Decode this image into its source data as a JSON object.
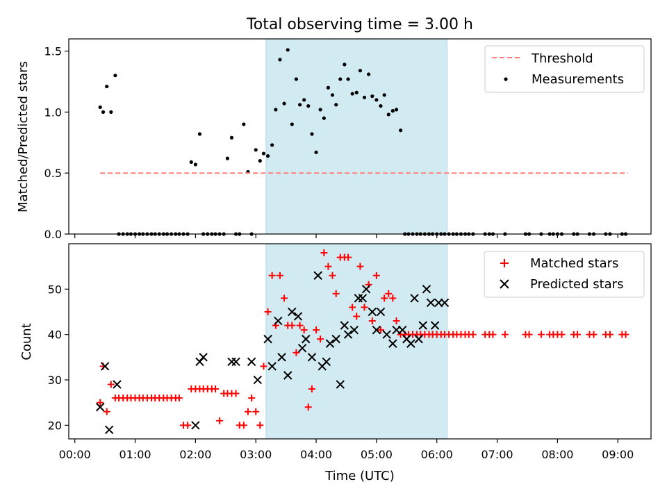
{
  "chart_data": {
    "type": "scatter",
    "title": "Total observing time = 3.00 h",
    "xlabel": "Time (UTC)",
    "x_tick_labels": [
      "00:00",
      "01:00",
      "02:00",
      "03:00",
      "04:00",
      "05:00",
      "06:00",
      "07:00",
      "08:00",
      "09:00"
    ],
    "xlim_hours": [
      -0.1,
      9.55
    ],
    "shaded_interval_hours": [
      3.17,
      6.17
    ],
    "shade_color": "#add8e6",
    "panels": [
      {
        "ylabel": "Matched/Predicted stars",
        "ylim": [
          0,
          1.6
        ],
        "y_ticks": [
          0.0,
          0.5,
          1.0,
          1.5
        ],
        "y_tick_labels": [
          "0.0",
          "0.5",
          "1.0",
          "1.5"
        ],
        "legend": [
          "Threshold",
          "Measurements"
        ],
        "threshold": {
          "name": "Threshold",
          "y": 0.5,
          "x_range": [
            0.42,
            9.17
          ],
          "color": "#ff7f7f"
        },
        "measurements": {
          "name": "Measurements",
          "color": "#000000",
          "x": [
            0.42,
            0.47,
            0.53,
            0.6,
            0.67,
            0.73,
            0.8,
            0.87,
            0.93,
            1.0,
            1.07,
            1.13,
            1.2,
            1.27,
            1.33,
            1.4,
            1.47,
            1.53,
            1.6,
            1.67,
            1.73,
            1.8,
            1.87,
            1.93,
            2.0,
            2.07,
            2.13,
            2.2,
            2.27,
            2.33,
            2.4,
            2.47,
            2.53,
            2.6,
            2.67,
            2.73,
            2.8,
            2.87,
            2.93,
            3.0,
            3.07,
            3.13,
            3.2,
            3.27,
            3.33,
            3.4,
            3.47,
            3.53,
            3.6,
            3.67,
            3.73,
            3.8,
            3.87,
            3.93,
            4.0,
            4.07,
            4.13,
            4.2,
            4.27,
            4.33,
            4.4,
            4.47,
            4.53,
            4.6,
            4.67,
            4.73,
            4.8,
            4.87,
            4.93,
            5.0,
            5.07,
            5.13,
            5.2,
            5.27,
            5.33,
            5.4,
            5.47,
            5.53,
            5.6,
            5.67,
            5.73,
            5.8,
            5.87,
            5.93,
            6.0,
            6.07,
            6.13,
            6.2,
            6.27,
            6.33,
            6.4,
            6.47,
            6.53,
            6.6,
            6.8,
            6.87,
            6.93,
            7.13,
            7.47,
            7.53,
            7.73,
            7.87,
            7.93,
            8.0,
            8.07,
            8.27,
            8.33,
            8.53,
            8.6,
            8.8,
            8.87,
            9.07,
            9.13
          ],
          "y": [
            1.04,
            1.0,
            1.21,
            1.0,
            1.3,
            0.0,
            0.0,
            0.0,
            0.0,
            0.0,
            0.0,
            0.0,
            0.0,
            0.0,
            0.0,
            0.0,
            0.0,
            0.0,
            0.0,
            0.0,
            0.0,
            0.0,
            0.0,
            0.59,
            0.57,
            0.82,
            0.0,
            0.0,
            0.0,
            0.0,
            0.0,
            0.0,
            0.62,
            0.79,
            0.0,
            0.0,
            0.9,
            0.51,
            0.0,
            0.69,
            0.6,
            0.66,
            0.64,
            0.73,
            1.02,
            1.43,
            1.07,
            1.51,
            0.9,
            1.27,
            1.06,
            1.1,
            1.05,
            0.82,
            0.67,
            1.02,
            0.95,
            1.2,
            1.14,
            1.06,
            1.27,
            1.39,
            1.27,
            1.15,
            1.16,
            1.34,
            1.12,
            1.31,
            1.13,
            1.1,
            1.05,
            1.14,
            0.98,
            1.01,
            1.02,
            0.85,
            0.0,
            0.0,
            0.0,
            0.0,
            0.0,
            0.0,
            0.0,
            0.0,
            0.0,
            0.0,
            0.0,
            0.0,
            0.0,
            0.0,
            0.0,
            0.0,
            0.0,
            0.0,
            0.0,
            0.0,
            0.0,
            0.0,
            0.0,
            0.0,
            0.0,
            0.0,
            0.0,
            0.0,
            0.0,
            0.0,
            0.0,
            0.0,
            0.0,
            0.0,
            0.0,
            0.0,
            0.0
          ]
        }
      },
      {
        "ylabel": "Count",
        "ylim": [
          17,
          60
        ],
        "y_ticks": [
          20,
          30,
          40,
          50
        ],
        "y_tick_labels": [
          "20",
          "30",
          "40",
          "50"
        ],
        "legend": [
          "Matched stars",
          "Predicted stars"
        ],
        "series": [
          {
            "name": "Matched stars",
            "marker": "+",
            "color": "#ff0000",
            "x": [
              0.42,
              0.47,
              0.53,
              0.6,
              0.67,
              0.73,
              0.8,
              0.87,
              0.93,
              1.0,
              1.07,
              1.13,
              1.2,
              1.27,
              1.33,
              1.4,
              1.47,
              1.53,
              1.6,
              1.67,
              1.73,
              1.8,
              1.87,
              1.93,
              2.0,
              2.07,
              2.13,
              2.2,
              2.27,
              2.33,
              2.4,
              2.47,
              2.53,
              2.6,
              2.67,
              2.73,
              2.8,
              2.87,
              2.93,
              3.0,
              3.07,
              3.13,
              3.2,
              3.27,
              3.33,
              3.4,
              3.47,
              3.53,
              3.6,
              3.67,
              3.73,
              3.8,
              3.87,
              3.93,
              4.0,
              4.07,
              4.13,
              4.2,
              4.27,
              4.33,
              4.4,
              4.47,
              4.53,
              4.6,
              4.67,
              4.73,
              4.8,
              4.87,
              4.93,
              5.0,
              5.07,
              5.13,
              5.2,
              5.27,
              5.33,
              5.4,
              5.47,
              5.53,
              5.6,
              5.67,
              5.73,
              5.8,
              5.87,
              5.93,
              6.0,
              6.07,
              6.13,
              6.2,
              6.27,
              6.33,
              6.4,
              6.47,
              6.53,
              6.6,
              6.8,
              6.87,
              6.93,
              7.13,
              7.47,
              7.53,
              7.73,
              7.87,
              7.93,
              8.0,
              8.07,
              8.27,
              8.33,
              8.53,
              8.6,
              8.8,
              8.87,
              9.07,
              9.13
            ],
            "y": [
              25,
              33,
              23,
              29,
              26,
              26,
              26,
              26,
              26,
              26,
              26,
              26,
              26,
              26,
              26,
              26,
              26,
              26,
              26,
              26,
              26,
              20,
              20,
              28,
              28,
              28,
              28,
              28,
              28,
              28,
              21,
              27,
              27,
              27,
              27,
              20,
              20,
              23,
              26,
              23,
              20,
              33,
              45,
              53,
              42,
              53,
              48,
              42,
              42,
              36,
              42,
              41,
              24,
              28,
              41,
              39,
              58,
              55,
              53,
              49,
              57,
              57,
              57,
              46,
              44,
              55,
              46,
              51,
              43,
              53,
              41,
              48,
              49,
              48,
              43,
              40,
              40,
              40,
              40,
              40,
              40,
              40,
              40,
              40,
              40,
              40,
              40,
              40,
              40,
              40,
              40,
              40,
              40,
              40,
              40,
              40,
              40,
              40,
              40,
              40,
              40,
              40,
              40,
              40,
              40,
              40,
              40,
              40,
              40,
              40,
              40,
              40,
              40
            ]
          },
          {
            "name": "Predicted stars",
            "marker": "x",
            "color": "#000000",
            "x": [
              0.42,
              0.5,
              0.57,
              0.7,
              2.0,
              2.07,
              2.13,
              2.6,
              2.67,
              2.93,
              3.03,
              3.2,
              3.27,
              3.37,
              3.43,
              3.53,
              3.6,
              3.7,
              3.77,
              3.83,
              3.93,
              4.03,
              4.1,
              4.17,
              4.23,
              4.33,
              4.4,
              4.47,
              4.53,
              4.63,
              4.7,
              4.77,
              4.83,
              4.93,
              5.0,
              5.07,
              5.17,
              5.27,
              5.33,
              5.43,
              5.5,
              5.57,
              5.63,
              5.7,
              5.77,
              5.83,
              5.9,
              5.97,
              6.03,
              6.13
            ],
            "y": [
              24,
              33,
              19,
              29,
              20,
              34,
              35,
              34,
              34,
              34,
              30,
              39,
              33,
              43,
              35,
              31,
              45,
              44,
              37,
              39,
              35,
              53,
              33,
              34,
              38,
              39,
              29,
              42,
              40,
              41,
              48,
              48,
              50,
              45,
              41,
              45,
              40,
              38,
              41,
              41,
              39,
              38,
              48,
              39,
              42,
              50,
              47,
              42,
              47,
              47
            ]
          }
        ]
      }
    ]
  }
}
